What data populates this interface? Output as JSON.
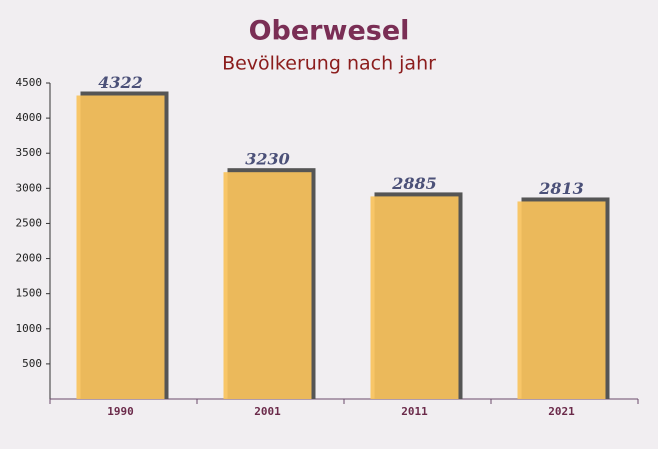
{
  "chart_data": {
    "type": "bar",
    "title": "Oberwesel",
    "subtitle": "Bevölkerung nach jahr",
    "categories": [
      "1990",
      "2001",
      "2011",
      "2021"
    ],
    "values": [
      4322,
      3230,
      2885,
      2813
    ],
    "color": "#f8c25c",
    "ylim": [
      0,
      4500
    ],
    "yticks": [
      500,
      1000,
      1500,
      2000,
      2500,
      3000,
      3500,
      4000,
      4500
    ]
  }
}
